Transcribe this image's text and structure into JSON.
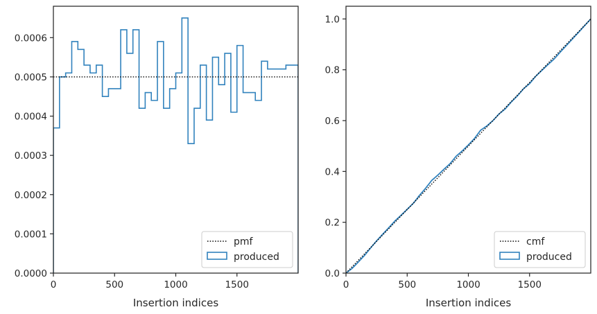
{
  "colors": {
    "produced": "#3182bd",
    "reference": "#000000",
    "axes": "#262626",
    "background": "#ffffff"
  },
  "chart_data": [
    {
      "type": "line",
      "subtype": "step-histogram",
      "xlabel": "Insertion indices",
      "ylabel": "",
      "xlim": [
        0,
        2000
      ],
      "ylim": [
        0,
        0.00068
      ],
      "x_ticks": [
        0,
        500,
        1000,
        1500
      ],
      "x_tick_labels": [
        "0",
        "500",
        "1000",
        "1500"
      ],
      "y_ticks": [
        0,
        0.0001,
        0.0002,
        0.0003,
        0.0004,
        0.0005,
        0.0006
      ],
      "y_tick_labels": [
        "0.0000",
        "0.0001",
        "0.0002",
        "0.0003",
        "0.0004",
        "0.0005",
        "0.0006"
      ],
      "grid": false,
      "legend_position": "lower-right",
      "reference": {
        "name": "pmf",
        "style": "dotted",
        "value": 0.0005
      },
      "series": [
        {
          "name": "produced",
          "bin_width": 50,
          "bin_start": 0,
          "values": [
            0.00037,
            0.0005,
            0.00051,
            0.00059,
            0.00057,
            0.00053,
            0.00051,
            0.00053,
            0.00045,
            0.00047,
            0.00047,
            0.00062,
            0.00056,
            0.00062,
            0.00042,
            0.00046,
            0.00044,
            0.00059,
            0.00042,
            0.00047,
            0.00051,
            0.00065,
            0.00033,
            0.00042,
            0.00053,
            0.00039,
            0.00055,
            0.00048,
            0.00056,
            0.00041,
            0.00058,
            0.00046,
            0.00046,
            0.00044,
            0.00054,
            0.00052,
            0.00052,
            0.00052,
            0.00053,
            0.00053
          ]
        }
      ]
    },
    {
      "type": "line",
      "xlabel": "Insertion indices",
      "ylabel": "",
      "xlim": [
        0,
        2000
      ],
      "ylim": [
        0,
        1.05
      ],
      "x_ticks": [
        0,
        500,
        1000,
        1500
      ],
      "x_tick_labels": [
        "0",
        "500",
        "1000",
        "1500"
      ],
      "y_ticks": [
        0,
        0.2,
        0.4,
        0.6,
        0.8,
        1.0
      ],
      "y_tick_labels": [
        "0.0",
        "0.2",
        "0.4",
        "0.6",
        "0.8",
        "1.0"
      ],
      "grid": false,
      "legend_position": "lower-right",
      "reference": {
        "name": "cmf",
        "style": "dotted",
        "from": [
          0,
          0
        ],
        "to": [
          2000,
          1.0
        ]
      },
      "series": [
        {
          "name": "produced",
          "kind": "cumulative-step"
        }
      ]
    }
  ]
}
